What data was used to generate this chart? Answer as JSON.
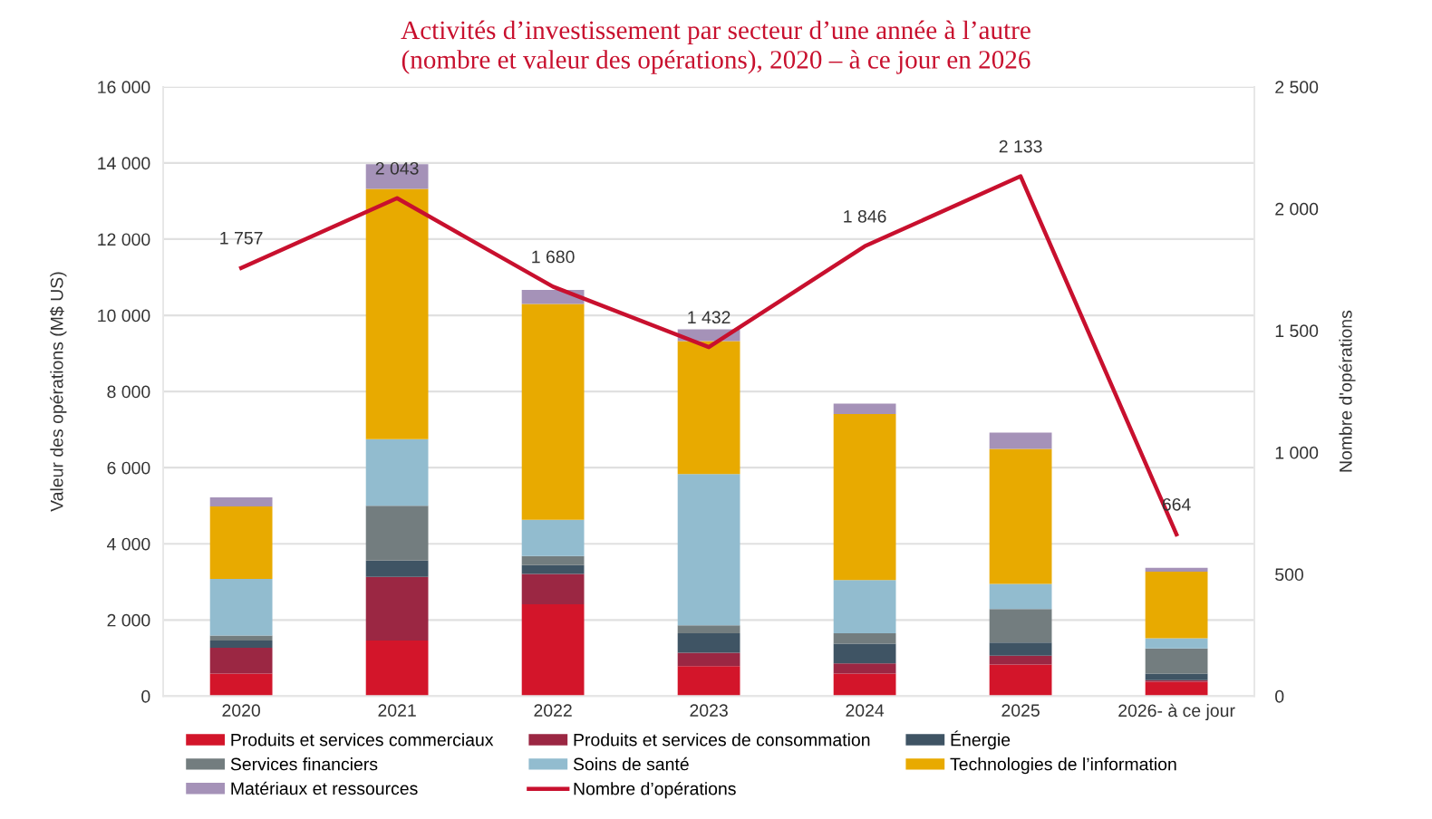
{
  "chart_data": {
    "type": "bar",
    "stacked": true,
    "title": "Activités d’investissement par secteur d’une année à l’autre\n(nombre et valeur des opérations), 2020 – à ce jour en 2026",
    "ylabel": "Valeur des opérations (M$ US)",
    "y2label": "Nombre d'opérations",
    "categories": [
      "2020",
      "2021",
      "2022",
      "2023",
      "2024",
      "2025",
      "2026- à ce jour"
    ],
    "series": [
      {
        "name": "Produits et services commerciaux",
        "color": "#d3152a",
        "values": [
          590,
          1460,
          2410,
          790,
          590,
          830,
          380
        ]
      },
      {
        "name": "Produits et services de consommation",
        "color": "#9b2743",
        "values": [
          680,
          1670,
          800,
          350,
          270,
          230,
          40
        ]
      },
      {
        "name": "Énergie",
        "color": "#3f5464",
        "values": [
          190,
          430,
          230,
          510,
          520,
          350,
          170
        ]
      },
      {
        "name": "Services financiers",
        "color": "#737d7f",
        "values": [
          130,
          1440,
          240,
          210,
          270,
          880,
          660
        ]
      },
      {
        "name": "Soins de santé",
        "color": "#92bccf",
        "values": [
          1490,
          1750,
          950,
          3970,
          1400,
          660,
          270
        ]
      },
      {
        "name": "Technologies de l’information",
        "color": "#e8aa00",
        "values": [
          1900,
          6570,
          5670,
          3490,
          4360,
          3540,
          1750
        ]
      },
      {
        "name": "Matériaux et ressources",
        "color": "#a592b8",
        "values": [
          240,
          650,
          370,
          310,
          270,
          430,
          100
        ]
      },
      {
        "name": "Nombre d’opérations",
        "type": "line",
        "axis": "y2",
        "color": "#c8102e",
        "values": [
          1757,
          2043,
          1680,
          1432,
          1846,
          2133,
          664
        ],
        "value_labels": [
          "1 757",
          "2 043",
          "1 680",
          "1 432",
          "1 846",
          "2 133",
          "664"
        ]
      }
    ],
    "ylim": [
      0,
      16000
    ],
    "yticks": [
      0,
      {
        "value": 2000,
        "label": "2 000"
      },
      {
        "value": 4000,
        "label": "4 000"
      },
      {
        "value": 6000,
        "label": "6 000"
      },
      {
        "value": 8000,
        "label": "8 000"
      },
      {
        "value": 10000,
        "label": "10 000"
      },
      {
        "value": 12000,
        "label": "12 000"
      },
      {
        "value": 14000,
        "label": "14 000"
      },
      {
        "value": 16000,
        "label": "16 000"
      }
    ],
    "y2lim": [
      0,
      2500
    ],
    "y2ticks": [
      0,
      500,
      {
        "value": 1000,
        "label": "1 000"
      },
      {
        "value": 1500,
        "label": "1 500"
      },
      {
        "value": 2000,
        "label": "2 000"
      },
      {
        "value": 2500,
        "label": "2 500"
      }
    ],
    "grid": "y",
    "legend": "bottom"
  }
}
